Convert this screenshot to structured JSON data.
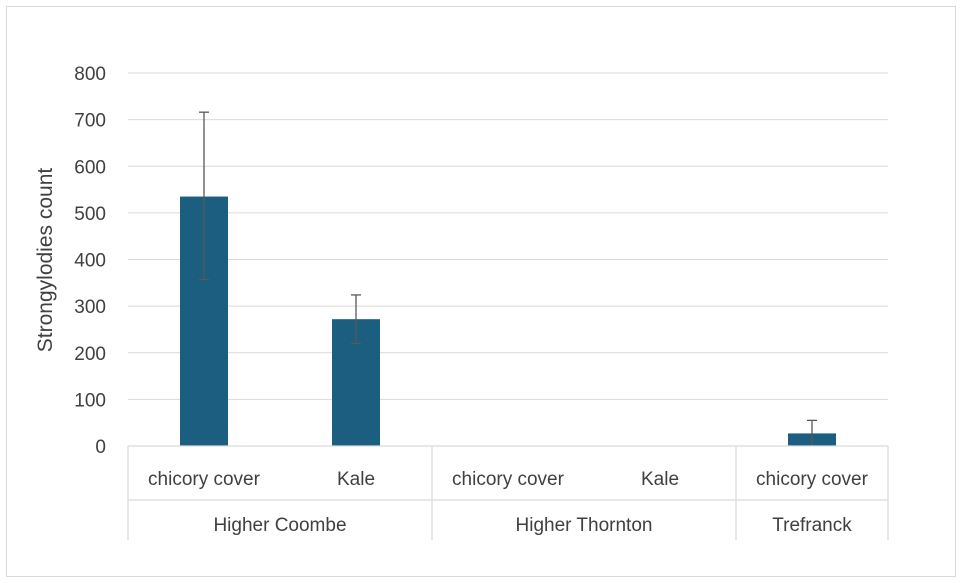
{
  "chart_data": {
    "type": "bar",
    "title": "",
    "xlabel": "",
    "ylabel": "Strongylodies count",
    "ylim": [
      0,
      800
    ],
    "yticks": [
      "0",
      "100",
      "200",
      "300",
      "400",
      "500",
      "600",
      "700",
      "800"
    ],
    "grid": true,
    "legend": "none",
    "bar_color": "#1b5e80",
    "groups": [
      {
        "name": "Higher Coombe",
        "categories": [
          "chicory cover",
          "Kale"
        ]
      },
      {
        "name": "Higher Thornton",
        "categories": [
          "chicory cover",
          "Kale"
        ]
      },
      {
        "name": "Trefranck",
        "categories": [
          "chicory cover"
        ]
      }
    ],
    "categories": [
      "chicory cover",
      "Kale",
      "chicory cover",
      "Kale",
      "chicory cover"
    ],
    "values": [
      535,
      272,
      0,
      0,
      27
    ],
    "error_low": [
      357,
      220,
      0,
      0,
      0
    ],
    "error_high": [
      716,
      324,
      0,
      0,
      55
    ]
  }
}
